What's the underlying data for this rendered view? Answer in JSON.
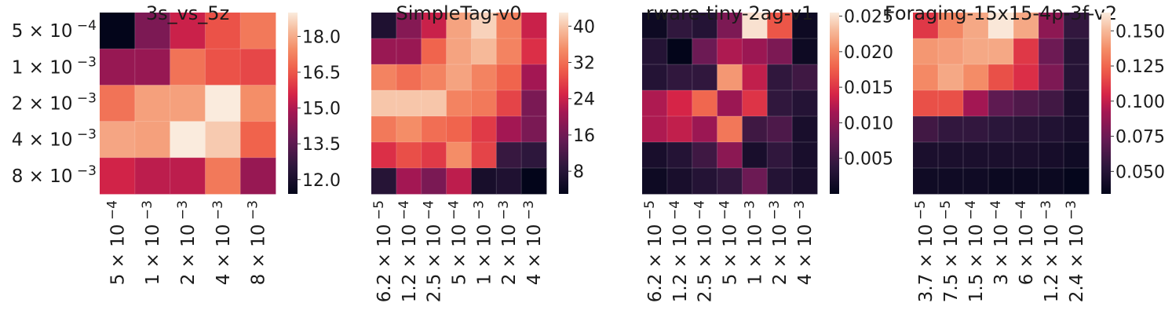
{
  "chart_data": [
    {
      "type": "heatmap",
      "title": "3s_vs_5z",
      "xlabel": "",
      "ylabel": "",
      "x_categories": [
        "5 × 10⁻⁴",
        "1 × 10⁻³",
        "2 × 10⁻³",
        "4 × 10⁻³",
        "8 × 10⁻³"
      ],
      "y_categories": [
        "5 × 10⁻⁴",
        "1 × 10⁻³",
        "2 × 10⁻³",
        "4 × 10⁻³",
        "8 × 10⁻³"
      ],
      "values": [
        [
          11.4,
          14.1,
          15.4,
          16.4,
          17.1
        ],
        [
          14.6,
          14.6,
          17.0,
          16.4,
          16.2
        ],
        [
          17.0,
          17.8,
          17.8,
          19.0,
          17.5
        ],
        [
          17.9,
          17.8,
          19.0,
          18.5,
          16.7
        ],
        [
          15.5,
          15.2,
          15.2,
          17.1,
          14.6
        ]
      ],
      "vmin": 11.4,
      "vmax": 19.0,
      "colorbar_ticks": [
        12.0,
        13.5,
        15.0,
        16.5,
        18.0
      ],
      "colorbar_tick_labels": [
        "12.0",
        "13.5",
        "15.0",
        "16.5",
        "18.0"
      ],
      "colormap": "rocket"
    },
    {
      "type": "heatmap",
      "title": "SimpleTag-v0",
      "xlabel": "",
      "ylabel": "",
      "x_categories": [
        "6.2 × 10⁻⁵",
        "1.2 × 10⁻⁴",
        "2.5 × 10⁻⁴",
        "5 × 10⁻⁴",
        "1 × 10⁻³",
        "2 × 10⁻³",
        "4 × 10⁻³"
      ],
      "y_categories": [],
      "values": [
        [
          7,
          18,
          24,
          37,
          41,
          34,
          24
        ],
        [
          20,
          20,
          31,
          37,
          39,
          34,
          26
        ],
        [
          34,
          32,
          34,
          37,
          34,
          31,
          21
        ],
        [
          40,
          40,
          40,
          34,
          33,
          28,
          17
        ],
        [
          33,
          35,
          32,
          31,
          27,
          21,
          17
        ],
        [
          26,
          29,
          27,
          35,
          28,
          10,
          9
        ],
        [
          8,
          21,
          17,
          23,
          6,
          7,
          3
        ]
      ],
      "vmin": 3,
      "vmax": 43,
      "colorbar_ticks": [
        8,
        16,
        24,
        32,
        40
      ],
      "colorbar_tick_labels": [
        "8",
        "16",
        "24",
        "32",
        "40"
      ],
      "colormap": "rocket"
    },
    {
      "type": "heatmap",
      "title": "rware-tiny-2ag-v1",
      "xlabel": "",
      "ylabel": "",
      "x_categories": [
        "6.2 × 10⁻⁵",
        "1.2 × 10⁻⁴",
        "2.5 × 10⁻⁴",
        "5 × 10⁻⁴",
        "1 × 10⁻³",
        "2 × 10⁻³",
        "4 × 10⁻³"
      ],
      "y_categories": [],
      "values": [
        [
          0.001,
          0.004,
          0.003,
          0.009,
          0.025,
          0.017,
          0.001
        ],
        [
          0.003,
          0.0,
          0.008,
          0.012,
          0.011,
          0.009,
          0.001
        ],
        [
          0.003,
          0.004,
          0.004,
          0.021,
          0.013,
          0.004,
          0.005
        ],
        [
          0.012,
          0.014,
          0.018,
          0.011,
          0.015,
          0.004,
          0.003
        ],
        [
          0.012,
          0.013,
          0.011,
          0.019,
          0.005,
          0.006,
          0.002
        ],
        [
          0.002,
          0.003,
          0.005,
          0.01,
          0.002,
          0.004,
          0.002
        ],
        [
          0.001,
          0.002,
          0.003,
          0.004,
          0.008,
          0.003,
          0.002
        ]
      ],
      "vmin": 0.0,
      "vmax": 0.0255,
      "colorbar_ticks": [
        0.005,
        0.01,
        0.015,
        0.02,
        0.025
      ],
      "colorbar_tick_labels": [
        "0.005",
        "0.010",
        "0.015",
        "0.020",
        "0.025"
      ],
      "colormap": "rocket"
    },
    {
      "type": "heatmap",
      "title": "Foraging-15x15-4p-3f-v2",
      "xlabel": "",
      "ylabel": "",
      "x_categories": [
        "3.7 × 10⁻⁵",
        "7.5 × 10⁻⁵",
        "1.5 × 10⁻⁴",
        "3 × 10⁻⁴",
        "6 × 10⁻⁴",
        "1.2 × 10⁻³",
        "2.4 × 10⁻³"
      ],
      "y_categories": [],
      "values": [
        [
          0.111,
          0.135,
          0.145,
          0.162,
          0.145,
          0.085,
          0.055
        ],
        [
          0.14,
          0.142,
          0.145,
          0.145,
          0.111,
          0.075,
          0.05
        ],
        [
          0.136,
          0.145,
          0.137,
          0.118,
          0.108,
          0.08,
          0.05
        ],
        [
          0.118,
          0.118,
          0.092,
          0.07,
          0.065,
          0.06,
          0.045
        ],
        [
          0.06,
          0.055,
          0.055,
          0.052,
          0.05,
          0.048,
          0.044
        ],
        [
          0.045,
          0.045,
          0.045,
          0.045,
          0.045,
          0.043,
          0.04
        ],
        [
          0.04,
          0.04,
          0.04,
          0.038,
          0.038,
          0.038,
          0.035
        ]
      ],
      "vmin": 0.034,
      "vmax": 0.163,
      "colorbar_ticks": [
        0.05,
        0.075,
        0.1,
        0.125,
        0.15
      ],
      "colorbar_tick_labels": [
        "0.050",
        "0.075",
        "0.100",
        "0.125",
        "0.150"
      ],
      "colormap": "rocket"
    }
  ]
}
